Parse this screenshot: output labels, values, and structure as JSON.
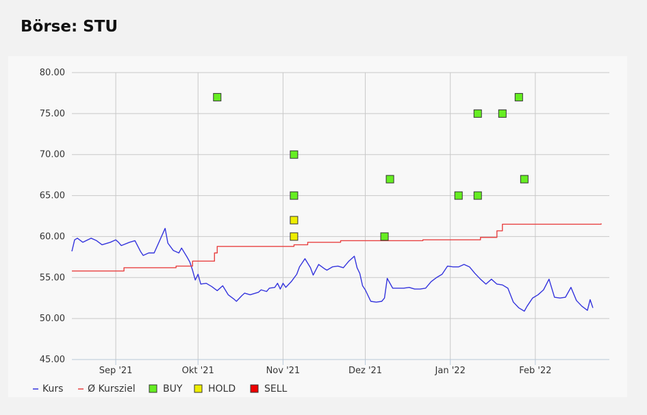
{
  "page": {
    "title": "Börse: STU"
  },
  "chart_data": {
    "type": "line",
    "title": "",
    "xlabel": "",
    "ylabel": "",
    "ylim": [
      45,
      80
    ],
    "y_ticks": [
      "45.00",
      "50.00",
      "55.00",
      "60.00",
      "65.00",
      "70.00",
      "75.00",
      "80.00"
    ],
    "x_range": [
      "2021-08-16",
      "2022-02-28"
    ],
    "x_ticks": [
      {
        "date": "2021-09-01",
        "label": "Sep '21"
      },
      {
        "date": "2021-10-01",
        "label": "Okt '21"
      },
      {
        "date": "2021-11-01",
        "label": "Nov '21"
      },
      {
        "date": "2021-12-01",
        "label": "Dez '21"
      },
      {
        "date": "2022-01-01",
        "label": "Jan '22"
      },
      {
        "date": "2022-02-01",
        "label": "Feb '22"
      }
    ],
    "grid": true,
    "legend_position": "bottom-left",
    "colors": {
      "kurs": "#3333dd",
      "kursziel": "#e84040",
      "buy": "#66ee22",
      "hold": "#eeee00",
      "sell": "#ee0000"
    },
    "legend": [
      {
        "key": "kurs",
        "label": "Kurs",
        "marker": "line"
      },
      {
        "key": "kursziel",
        "label": "Ø Kursziel",
        "marker": "line"
      },
      {
        "key": "buy",
        "label": "BUY",
        "marker": "square"
      },
      {
        "key": "hold",
        "label": "HOLD",
        "marker": "square"
      },
      {
        "key": "sell",
        "label": "SELL",
        "marker": "square"
      }
    ],
    "series": [
      {
        "name": "Kurs",
        "key": "kurs",
        "points": [
          [
            "2021-08-16",
            58.2
          ],
          [
            "2021-08-17",
            59.6
          ],
          [
            "2021-08-18",
            59.8
          ],
          [
            "2021-08-20",
            59.3
          ],
          [
            "2021-08-23",
            59.8
          ],
          [
            "2021-08-25",
            59.5
          ],
          [
            "2021-08-27",
            59.0
          ],
          [
            "2021-08-30",
            59.3
          ],
          [
            "2021-09-01",
            59.6
          ],
          [
            "2021-09-02",
            59.3
          ],
          [
            "2021-09-03",
            58.9
          ],
          [
            "2021-09-06",
            59.3
          ],
          [
            "2021-09-08",
            59.5
          ],
          [
            "2021-09-10",
            58.2
          ],
          [
            "2021-09-11",
            57.7
          ],
          [
            "2021-09-13",
            58.0
          ],
          [
            "2021-09-15",
            58.0
          ],
          [
            "2021-09-17",
            59.5
          ],
          [
            "2021-09-19",
            61.0
          ],
          [
            "2021-09-20",
            59.2
          ],
          [
            "2021-09-22",
            58.3
          ],
          [
            "2021-09-24",
            58.0
          ],
          [
            "2021-09-25",
            58.6
          ],
          [
            "2021-09-27",
            57.5
          ],
          [
            "2021-09-28",
            56.9
          ],
          [
            "2021-09-29",
            55.9
          ],
          [
            "2021-09-30",
            54.7
          ],
          [
            "2021-10-01",
            55.4
          ],
          [
            "2021-10-02",
            54.2
          ],
          [
            "2021-10-04",
            54.3
          ],
          [
            "2021-10-06",
            53.9
          ],
          [
            "2021-10-08",
            53.4
          ],
          [
            "2021-10-10",
            54.0
          ],
          [
            "2021-10-12",
            52.9
          ],
          [
            "2021-10-14",
            52.4
          ],
          [
            "2021-10-15",
            52.1
          ],
          [
            "2021-10-17",
            52.8
          ],
          [
            "2021-10-18",
            53.1
          ],
          [
            "2021-10-20",
            52.9
          ],
          [
            "2021-10-23",
            53.2
          ],
          [
            "2021-10-24",
            53.5
          ],
          [
            "2021-10-26",
            53.3
          ],
          [
            "2021-10-27",
            53.7
          ],
          [
            "2021-10-29",
            53.8
          ],
          [
            "2021-10-30",
            54.3
          ],
          [
            "2021-10-31",
            53.6
          ],
          [
            "2021-11-01",
            54.3
          ],
          [
            "2021-11-02",
            53.8
          ],
          [
            "2021-11-04",
            54.5
          ],
          [
            "2021-11-06",
            55.4
          ],
          [
            "2021-11-07",
            56.3
          ],
          [
            "2021-11-09",
            57.3
          ],
          [
            "2021-11-11",
            56.2
          ],
          [
            "2021-11-12",
            55.3
          ],
          [
            "2021-11-14",
            56.6
          ],
          [
            "2021-11-16",
            56.1
          ],
          [
            "2021-11-17",
            55.9
          ],
          [
            "2021-11-19",
            56.3
          ],
          [
            "2021-11-21",
            56.4
          ],
          [
            "2021-11-23",
            56.2
          ],
          [
            "2021-11-25",
            57.0
          ],
          [
            "2021-11-27",
            57.6
          ],
          [
            "2021-11-28",
            56.2
          ],
          [
            "2021-11-29",
            55.5
          ],
          [
            "2021-11-30",
            54.0
          ],
          [
            "2021-12-01",
            53.5
          ],
          [
            "2021-12-03",
            52.1
          ],
          [
            "2021-12-05",
            52.0
          ],
          [
            "2021-12-07",
            52.1
          ],
          [
            "2021-12-08",
            52.5
          ],
          [
            "2021-12-09",
            54.9
          ],
          [
            "2021-12-11",
            53.7
          ],
          [
            "2021-12-13",
            53.7
          ],
          [
            "2021-12-15",
            53.7
          ],
          [
            "2021-12-17",
            53.8
          ],
          [
            "2021-12-19",
            53.6
          ],
          [
            "2021-12-21",
            53.6
          ],
          [
            "2021-12-23",
            53.7
          ],
          [
            "2021-12-25",
            54.5
          ],
          [
            "2021-12-27",
            55.0
          ],
          [
            "2021-12-29",
            55.4
          ],
          [
            "2021-12-31",
            56.4
          ],
          [
            "2022-01-02",
            56.3
          ],
          [
            "2022-01-04",
            56.3
          ],
          [
            "2022-01-06",
            56.6
          ],
          [
            "2022-01-08",
            56.3
          ],
          [
            "2022-01-10",
            55.5
          ],
          [
            "2022-01-12",
            54.8
          ],
          [
            "2022-01-14",
            54.2
          ],
          [
            "2022-01-16",
            54.8
          ],
          [
            "2022-01-18",
            54.2
          ],
          [
            "2022-01-20",
            54.1
          ],
          [
            "2022-01-22",
            53.7
          ],
          [
            "2022-01-24",
            52.0
          ],
          [
            "2022-01-26",
            51.3
          ],
          [
            "2022-01-28",
            50.9
          ],
          [
            "2022-01-29",
            51.5
          ],
          [
            "2022-01-31",
            52.5
          ],
          [
            "2022-02-02",
            52.9
          ],
          [
            "2022-02-04",
            53.5
          ],
          [
            "2022-02-06",
            54.8
          ],
          [
            "2022-02-08",
            52.6
          ],
          [
            "2022-02-10",
            52.5
          ],
          [
            "2022-02-12",
            52.6
          ],
          [
            "2022-02-14",
            53.8
          ],
          [
            "2022-02-16",
            52.2
          ],
          [
            "2022-02-18",
            51.5
          ],
          [
            "2022-02-20",
            51.0
          ],
          [
            "2022-02-21",
            52.3
          ],
          [
            "2022-02-22",
            51.3
          ]
        ]
      },
      {
        "name": "Ø Kursziel",
        "key": "kursziel",
        "step": true,
        "points": [
          [
            "2021-08-16",
            55.8
          ],
          [
            "2021-09-04",
            56.2
          ],
          [
            "2021-09-23",
            56.4
          ],
          [
            "2021-09-29",
            57.0
          ],
          [
            "2021-10-07",
            58.0
          ],
          [
            "2021-10-08",
            58.8
          ],
          [
            "2021-11-05",
            59.0
          ],
          [
            "2021-11-10",
            59.3
          ],
          [
            "2021-11-22",
            59.5
          ],
          [
            "2021-12-22",
            59.6
          ],
          [
            "2022-01-12",
            59.9
          ],
          [
            "2022-01-18",
            60.7
          ],
          [
            "2022-01-20",
            61.5
          ],
          [
            "2022-02-25",
            61.6
          ]
        ]
      }
    ],
    "ratings": [
      {
        "date": "2021-10-08",
        "value": 77,
        "type": "BUY"
      },
      {
        "date": "2021-11-05",
        "value": 60,
        "type": "HOLD"
      },
      {
        "date": "2021-11-05",
        "value": 62,
        "type": "HOLD"
      },
      {
        "date": "2021-11-05",
        "value": 70,
        "type": "BUY"
      },
      {
        "date": "2021-11-05",
        "value": 65,
        "type": "BUY"
      },
      {
        "date": "2021-12-08",
        "value": 60,
        "type": "BUY"
      },
      {
        "date": "2021-12-10",
        "value": 67,
        "type": "BUY"
      },
      {
        "date": "2022-01-04",
        "value": 65,
        "type": "BUY"
      },
      {
        "date": "2022-01-11",
        "value": 75,
        "type": "BUY"
      },
      {
        "date": "2022-01-11",
        "value": 65,
        "type": "BUY"
      },
      {
        "date": "2022-01-20",
        "value": 75,
        "type": "BUY"
      },
      {
        "date": "2022-01-26",
        "value": 77,
        "type": "BUY"
      },
      {
        "date": "2022-01-28",
        "value": 67,
        "type": "BUY"
      }
    ]
  }
}
